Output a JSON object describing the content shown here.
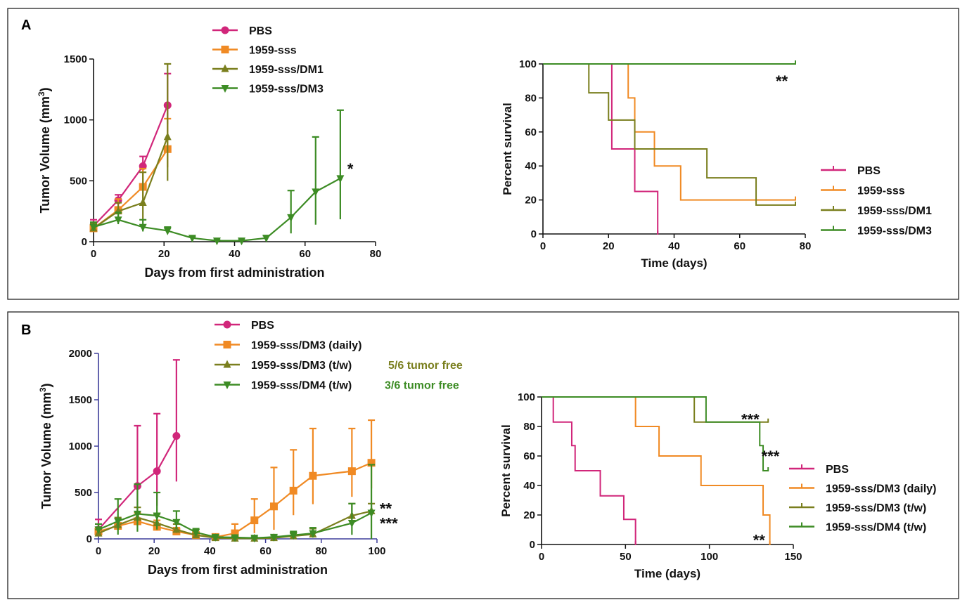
{
  "colors": {
    "pbs": "#d1267a",
    "sss": "#f08a24",
    "dm1": "#7a7f1e",
    "dm3": "#3d8c25",
    "dm4": "#3d8c25",
    "axisB": "#3d3d9a"
  },
  "panels": [
    {
      "label": "A"
    },
    {
      "label": "B"
    }
  ],
  "chart_data": [
    {
      "type": "line",
      "panel": "A",
      "xlabel": "Days from first administration",
      "ylabel": "Tumor Volume (mm",
      "ylabel_sup": "3",
      "ylabel_suffix": ")",
      "xlim": [
        0,
        80
      ],
      "ylim": [
        0,
        1500
      ],
      "xticks": [
        0,
        20,
        40,
        60,
        80
      ],
      "yticks": [
        0,
        500,
        1000,
        1500
      ],
      "series": [
        {
          "name": "PBS",
          "color": "pbs",
          "marker": "circle",
          "x": [
            0,
            7,
            14,
            21
          ],
          "y": [
            130,
            340,
            620,
            1120
          ],
          "err": [
            50,
            45,
            80,
            260
          ]
        },
        {
          "name": "1959-sss",
          "color": "sss",
          "marker": "square",
          "x": [
            0,
            7,
            14,
            21
          ],
          "y": [
            110,
            260,
            450,
            760
          ],
          "err": [
            40,
            90,
            150,
            250
          ]
        },
        {
          "name": "1959-sss/DM1",
          "color": "dm1",
          "marker": "triangle-up",
          "x": [
            0,
            7,
            14,
            21
          ],
          "y": [
            110,
            250,
            320,
            860
          ],
          "err": [
            40,
            70,
            250,
            600
          ]
        },
        {
          "name": "1959-sss/DM3",
          "color": "dm3",
          "marker": "triangle-down",
          "x": [
            0,
            7,
            14,
            21,
            28,
            35,
            42,
            49,
            56,
            63,
            70
          ],
          "y": [
            120,
            180,
            120,
            90,
            30,
            8,
            8,
            30,
            200,
            410,
            520
          ],
          "err": [
            40,
            60,
            60,
            30,
            10,
            5,
            5,
            20,
            220,
            450,
            560
          ]
        }
      ],
      "annotations": [
        {
          "text": "*",
          "x": 72,
          "y": 600
        }
      ]
    },
    {
      "type": "line",
      "panel": "A",
      "subtype": "survival",
      "xlabel": "Time (days)",
      "ylabel": "Percent survival",
      "xlim": [
        0,
        80
      ],
      "ylim": [
        0,
        100
      ],
      "xticks": [
        0,
        20,
        40,
        60,
        80
      ],
      "yticks": [
        0,
        20,
        40,
        60,
        80,
        100
      ],
      "series": [
        {
          "name": "PBS",
          "color": "pbs",
          "x": [
            0,
            21,
            21,
            28,
            28,
            35,
            35
          ],
          "y": [
            100,
            100,
            50,
            50,
            25,
            25,
            0
          ]
        },
        {
          "name": "1959-sss",
          "color": "sss",
          "x": [
            0,
            26,
            26,
            28,
            28,
            30,
            30,
            34,
            34,
            42,
            42,
            77
          ],
          "y": [
            100,
            100,
            80,
            80,
            60,
            60,
            60,
            60,
            40,
            40,
            20,
            20
          ]
        },
        {
          "name": "1959-sss/DM1",
          "color": "dm1",
          "x": [
            0,
            14,
            14,
            20,
            20,
            28,
            28,
            50,
            50,
            65,
            65,
            77
          ],
          "y": [
            100,
            100,
            83,
            83,
            67,
            67,
            50,
            50,
            33,
            33,
            17,
            17
          ]
        },
        {
          "name": "1959-sss/DM3",
          "color": "dm3",
          "x": [
            0,
            77
          ],
          "y": [
            100,
            100
          ]
        }
      ],
      "annotations": [
        {
          "text": "**",
          "x": 71,
          "y": 90
        }
      ]
    },
    {
      "type": "line",
      "panel": "B",
      "xlabel": "Days from first administration",
      "ylabel": "Tumor Volume (mm",
      "ylabel_sup": "3",
      "ylabel_suffix": ")",
      "xlim": [
        0,
        100
      ],
      "ylim": [
        0,
        2000
      ],
      "xticks": [
        0,
        20,
        40,
        60,
        80,
        100
      ],
      "yticks": [
        0,
        500,
        1000,
        1500,
        2000
      ],
      "series": [
        {
          "name": "PBS",
          "color": "pbs",
          "marker": "circle",
          "x": [
            0,
            14,
            21,
            28
          ],
          "y": [
            100,
            570,
            730,
            1110
          ],
          "err": [
            110,
            650,
            620,
            820
          ]
        },
        {
          "name": "1959-sss/DM3 (daily)",
          "color": "sss",
          "marker": "square",
          "x": [
            0,
            7,
            14,
            21,
            28,
            35,
            42,
            49,
            56,
            63,
            70,
            77,
            91,
            98
          ],
          "y": [
            80,
            140,
            190,
            130,
            80,
            40,
            20,
            60,
            200,
            350,
            520,
            680,
            730,
            820
          ],
          "err": [
            40,
            80,
            90,
            70,
            40,
            20,
            15,
            100,
            230,
            420,
            440,
            510,
            460,
            460
          ]
        },
        {
          "name": "1959-sss/DM3 (t/w)",
          "color": "dm1",
          "marker": "triangle-up",
          "x": [
            0,
            7,
            14,
            21,
            28,
            35,
            42,
            49,
            56,
            63,
            70,
            77,
            91,
            98
          ],
          "y": [
            60,
            150,
            230,
            170,
            100,
            40,
            10,
            5,
            5,
            10,
            30,
            50,
            250,
            300
          ],
          "err": [
            40,
            80,
            110,
            100,
            60,
            20,
            10,
            5,
            5,
            10,
            30,
            60,
            130,
            80
          ]
        },
        {
          "name": "1959-sss/DM4 (t/w)",
          "color": "dm4",
          "marker": "triangle-down",
          "x": [
            0,
            7,
            14,
            21,
            28,
            35,
            42,
            49,
            56,
            63,
            70,
            77,
            91,
            98
          ],
          "y": [
            100,
            190,
            270,
            250,
            180,
            70,
            20,
            15,
            10,
            20,
            40,
            60,
            170,
            280
          ],
          "err": [
            60,
            240,
            320,
            250,
            120,
            40,
            20,
            10,
            10,
            20,
            40,
            60,
            210,
            520
          ]
        }
      ],
      "legend_notes": [
        {
          "text": "5/6 tumor free",
          "color": "dm1"
        },
        {
          "text": "3/6 tumor free",
          "color": "dm4"
        }
      ],
      "annotations": [
        {
          "text": "**",
          "x": 101,
          "y": 330
        },
        {
          "text": "***",
          "x": 101,
          "y": 170
        }
      ]
    },
    {
      "type": "line",
      "panel": "B",
      "subtype": "survival",
      "xlabel": "Time (days)",
      "ylabel": "Percent survival",
      "xlim": [
        0,
        150
      ],
      "ylim": [
        0,
        100
      ],
      "xticks": [
        0,
        50,
        100,
        150
      ],
      "yticks": [
        0,
        20,
        40,
        60,
        80,
        100
      ],
      "series": [
        {
          "name": "PBS",
          "color": "pbs",
          "x": [
            0,
            7,
            7,
            18,
            18,
            20,
            20,
            35,
            35,
            49,
            49,
            56,
            56
          ],
          "y": [
            100,
            100,
            83,
            83,
            67,
            67,
            50,
            50,
            33,
            33,
            17,
            17,
            0
          ]
        },
        {
          "name": "1959-sss/DM3 (daily)",
          "color": "sss",
          "x": [
            0,
            56,
            56,
            70,
            70,
            95,
            95,
            132,
            132,
            136,
            136
          ],
          "y": [
            100,
            100,
            80,
            80,
            60,
            60,
            40,
            40,
            20,
            20,
            0
          ]
        },
        {
          "name": "1959-sss/DM3 (t/w)",
          "color": "dm1",
          "x": [
            0,
            91,
            91,
            135
          ],
          "y": [
            100,
            100,
            83,
            83
          ]
        },
        {
          "name": "1959-sss/DM4 (t/w)",
          "color": "dm4",
          "x": [
            0,
            98,
            98,
            130,
            130,
            132,
            132,
            135
          ],
          "y": [
            100,
            100,
            83,
            83,
            67,
            67,
            50,
            50
          ]
        }
      ],
      "annotations": [
        {
          "text": "***",
          "x": 119,
          "y": 85
        },
        {
          "text": "***",
          "x": 131,
          "y": 60
        },
        {
          "text": "**",
          "x": 126,
          "y": 3
        }
      ]
    }
  ]
}
